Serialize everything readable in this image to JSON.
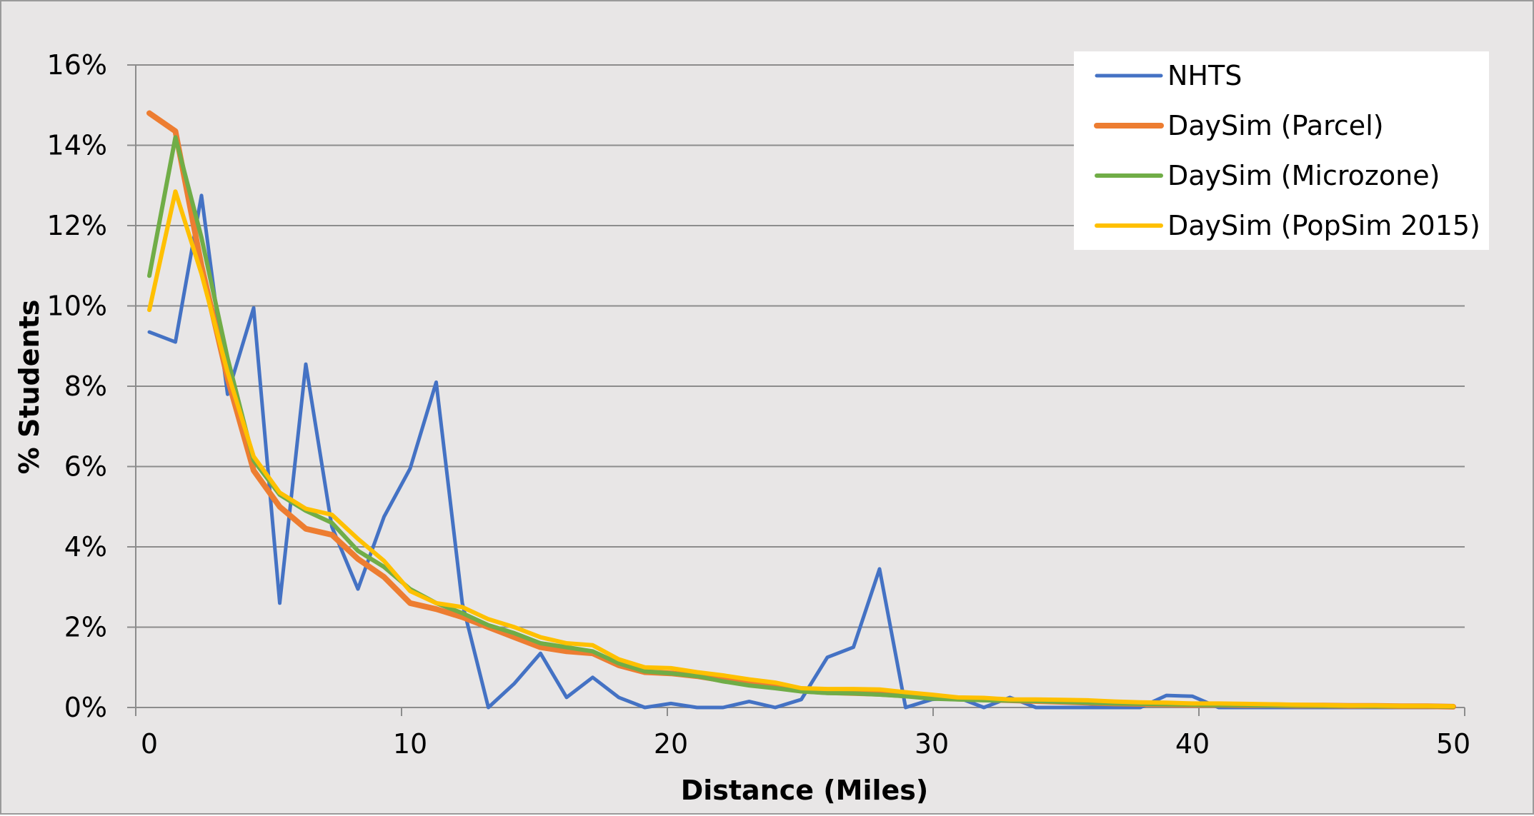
{
  "chart_data": {
    "type": "line",
    "xlabel": "Distance (Miles)",
    "ylabel": "% Students",
    "xlim": [
      0,
      50
    ],
    "ylim": [
      0,
      16
    ],
    "x_ticks": [
      "0",
      "10",
      "20",
      "30",
      "40",
      "50"
    ],
    "y_ticks": [
      "0%",
      "2%",
      "4%",
      "6%",
      "8%",
      "10%",
      "12%",
      "14%",
      "16%"
    ],
    "grid": "horizontal",
    "legend_position": "top-right",
    "x": [
      0,
      1,
      2,
      3,
      4,
      5,
      6,
      7,
      8,
      9,
      10,
      11,
      12,
      13,
      14,
      15,
      16,
      17,
      18,
      19,
      20,
      21,
      22,
      23,
      24,
      25,
      26,
      27,
      28,
      29,
      30,
      31,
      32,
      33,
      34,
      35,
      36,
      37,
      38,
      39,
      40,
      41,
      42,
      43,
      44,
      45,
      46,
      47,
      48,
      49,
      50
    ],
    "series": [
      {
        "name": "NHTS",
        "color": "#4472c4",
        "values": [
          9.35,
          9.1,
          12.75,
          7.8,
          9.95,
          2.6,
          8.55,
          4.5,
          2.95,
          4.75,
          5.95,
          8.1,
          2.6,
          0.0,
          0.6,
          1.35,
          0.25,
          0.75,
          0.25,
          0.0,
          0.1,
          0.0,
          0.0,
          0.15,
          0.0,
          0.2,
          1.25,
          1.5,
          3.45,
          0.0,
          0.2,
          0.25,
          0.0,
          0.25,
          0.0,
          0.0,
          0.0,
          0.0,
          0.0,
          0.3,
          0.28,
          0.0,
          0.0,
          0.0,
          0.0,
          0.0,
          0.0,
          0.0,
          0.0,
          0.0,
          0.0
        ]
      },
      {
        "name": "DaySim (Parcel)",
        "color": "#ed7d31",
        "values": [
          14.8,
          14.35,
          11.0,
          8.2,
          5.9,
          5.0,
          4.45,
          4.3,
          3.7,
          3.25,
          2.6,
          2.45,
          2.25,
          2.0,
          1.75,
          1.5,
          1.4,
          1.35,
          1.05,
          0.88,
          0.85,
          0.78,
          0.68,
          0.6,
          0.52,
          0.42,
          0.38,
          0.36,
          0.34,
          0.3,
          0.25,
          0.22,
          0.2,
          0.18,
          0.16,
          0.14,
          0.12,
          0.1,
          0.09,
          0.08,
          0.07,
          0.07,
          0.06,
          0.06,
          0.05,
          0.05,
          0.04,
          0.04,
          0.03,
          0.03,
          0.02
        ]
      },
      {
        "name": "DaySim (Microzone)",
        "color": "#70ad47",
        "values": [
          10.75,
          14.2,
          11.7,
          8.7,
          6.15,
          5.3,
          4.9,
          4.6,
          3.9,
          3.5,
          2.95,
          2.6,
          2.35,
          2.05,
          1.85,
          1.6,
          1.5,
          1.4,
          1.1,
          0.9,
          0.85,
          0.78,
          0.65,
          0.55,
          0.48,
          0.4,
          0.36,
          0.35,
          0.32,
          0.28,
          0.22,
          0.2,
          0.18,
          0.17,
          0.16,
          0.14,
          0.12,
          0.1,
          0.09,
          0.08,
          0.07,
          0.06,
          0.06,
          0.05,
          0.05,
          0.04,
          0.04,
          0.03,
          0.03,
          0.03,
          0.02
        ]
      },
      {
        "name": "DaySim (PopSim 2015)",
        "color": "#ffc000",
        "values": [
          9.9,
          12.85,
          10.8,
          8.35,
          6.25,
          5.35,
          4.95,
          4.8,
          4.2,
          3.65,
          2.9,
          2.6,
          2.5,
          2.2,
          2.0,
          1.75,
          1.6,
          1.55,
          1.2,
          1.0,
          0.98,
          0.88,
          0.8,
          0.7,
          0.62,
          0.48,
          0.46,
          0.46,
          0.45,
          0.38,
          0.32,
          0.25,
          0.24,
          0.2,
          0.2,
          0.19,
          0.18,
          0.15,
          0.13,
          0.12,
          0.1,
          0.1,
          0.09,
          0.08,
          0.07,
          0.06,
          0.05,
          0.05,
          0.04,
          0.04,
          0.03
        ]
      }
    ]
  }
}
